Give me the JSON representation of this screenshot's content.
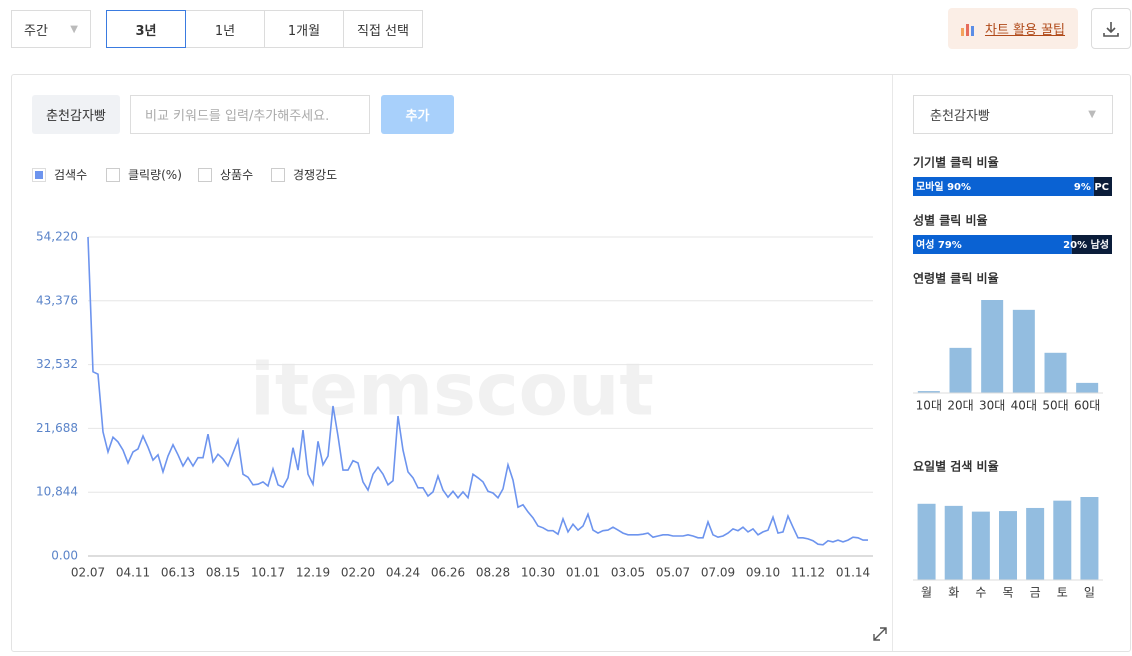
{
  "toolbar": {
    "period_select": "주간",
    "tabs": [
      "3년",
      "1년",
      "1개월",
      "직접 선택"
    ],
    "tips_button": "차트 활용 꿀팁"
  },
  "keyword_bar": {
    "keyword": "춘천감자빵",
    "input_placeholder": "비교 키워드를 입력/추가해주세요.",
    "add_button": "추가"
  },
  "metric_options": [
    "클릭량(%)",
    "상품수",
    "경쟁강도"
  ],
  "watermark": "itemscout",
  "side_panel": {
    "keyword_select": "춘천감자빵",
    "device": {
      "title": "기기별 클릭 비율",
      "segments": [
        {
          "label": "모바일 90%",
          "value": 90,
          "color": "#0a62d3"
        },
        {
          "label": "9% PC",
          "value": 9,
          "color": "#0b1d3a"
        }
      ]
    },
    "gender": {
      "title": "성별 클릭 비율",
      "segments": [
        {
          "label": "여성 79%",
          "value": 79,
          "color": "#0a62d3"
        },
        {
          "label": "20% 남성",
          "value": 20,
          "color": "#0b1d3a"
        }
      ]
    }
  },
  "chart_data": [
    {
      "type": "line",
      "categories": [
        "02.07",
        null,
        null,
        null,
        null,
        null,
        null,
        null,
        null,
        "04.11",
        null,
        null,
        null,
        null,
        null,
        null,
        null,
        null,
        "06.13",
        null,
        null,
        null,
        null,
        null,
        null,
        null,
        null,
        "08.15",
        null,
        null,
        null,
        null,
        null,
        null,
        null,
        null,
        "10.17",
        null,
        null,
        null,
        null,
        null,
        null,
        null,
        null,
        "12.19",
        null,
        null,
        null,
        null,
        null,
        null,
        null,
        null,
        "02.20",
        null,
        null,
        null,
        null,
        null,
        null,
        null,
        null,
        "04.24",
        null,
        null,
        null,
        null,
        null,
        null,
        null,
        null,
        "06.26",
        null,
        null,
        null,
        null,
        null,
        null,
        null,
        null,
        "08.28",
        null,
        null,
        null,
        null,
        null,
        null,
        null,
        null,
        "10.30",
        null,
        null,
        null,
        null,
        null,
        null,
        null,
        null,
        "01.01",
        null,
        null,
        null,
        null,
        null,
        null,
        null,
        null,
        "03.05",
        null,
        null,
        null,
        null,
        null,
        null,
        null,
        null,
        "05.07",
        null,
        null,
        null,
        null,
        null,
        null,
        null,
        null,
        "07.09",
        null,
        null,
        null,
        null,
        null,
        null,
        null,
        null,
        "09.10",
        null,
        null,
        null,
        null,
        null,
        null,
        null,
        null,
        "11.12",
        null,
        null,
        null,
        null,
        null,
        null,
        null,
        null,
        "01.14",
        null,
        null,
        null
      ],
      "series": [
        {
          "name": "검색수",
          "color": "#6d94ee",
          "values": [
            54220,
            31300,
            30900,
            21100,
            17700,
            20200,
            19400,
            18000,
            15800,
            17700,
            18200,
            20400,
            18500,
            16300,
            17200,
            14300,
            17000,
            18900,
            17200,
            15300,
            16700,
            15300,
            16700,
            16700,
            20700,
            16000,
            17300,
            16500,
            15300,
            17500,
            19700,
            13900,
            13400,
            12100,
            12200,
            12600,
            11900,
            14800,
            12100,
            11700,
            13300,
            18400,
            14600,
            21400,
            13900,
            12200,
            19500,
            15500,
            17000,
            25500,
            20400,
            14600,
            14600,
            16200,
            15800,
            12600,
            11200,
            13900,
            15100,
            13900,
            12100,
            12800,
            23800,
            18000,
            14300,
            13300,
            11600,
            11600,
            10200,
            10900,
            13600,
            11200,
            10000,
            11000,
            9900,
            10900,
            9900,
            13900,
            13300,
            12600,
            11000,
            10700,
            9900,
            11400,
            15500,
            12900,
            8300,
            8700,
            7500,
            6500,
            5100,
            4800,
            4300,
            4300,
            3700,
            6300,
            4100,
            5400,
            4400,
            5100,
            7100,
            4400,
            3900,
            4300,
            4400,
            4900,
            4400,
            3900,
            3600,
            3600,
            3600,
            3700,
            3900,
            3200,
            3400,
            3600,
            3600,
            3400,
            3400,
            3400,
            3600,
            3400,
            3100,
            3100,
            5800,
            3600,
            3200,
            3400,
            3900,
            4600,
            4300,
            4900,
            4100,
            4600,
            3600,
            4100,
            4400,
            6600,
            3900,
            4100,
            6800,
            4900,
            3100,
            3100,
            2900,
            2600,
            2000,
            1900,
            2600,
            2400,
            2700,
            2400,
            2700,
            3200,
            3100,
            2700,
            2700
          ]
        }
      ],
      "ylim": [
        0,
        54220
      ],
      "yticks": [
        {
          "value": 0,
          "label": "0.00"
        },
        {
          "value": 10844,
          "label": "10,844"
        },
        {
          "value": 21688,
          "label": "21,688"
        },
        {
          "value": 32532,
          "label": "32,532"
        },
        {
          "value": 43376,
          "label": "43,376"
        },
        {
          "value": 54220,
          "label": "54,220"
        }
      ],
      "grid": true
    },
    {
      "type": "bar",
      "title": "연령별 클릭 비율",
      "categories": [
        "10대",
        "20대",
        "30대",
        "40대",
        "50대",
        "60대"
      ],
      "values": [
        0.7,
        16.5,
        34,
        30.4,
        14.7,
        3.7
      ],
      "color": "#93bde0"
    },
    {
      "type": "bar",
      "title": "요일별 검색 비율",
      "categories": [
        "월",
        "화",
        "수",
        "목",
        "금",
        "토",
        "일"
      ],
      "values": [
        14.6,
        14.2,
        13.1,
        13.2,
        13.8,
        15.2,
        15.9
      ],
      "color": "#93bde0"
    }
  ]
}
